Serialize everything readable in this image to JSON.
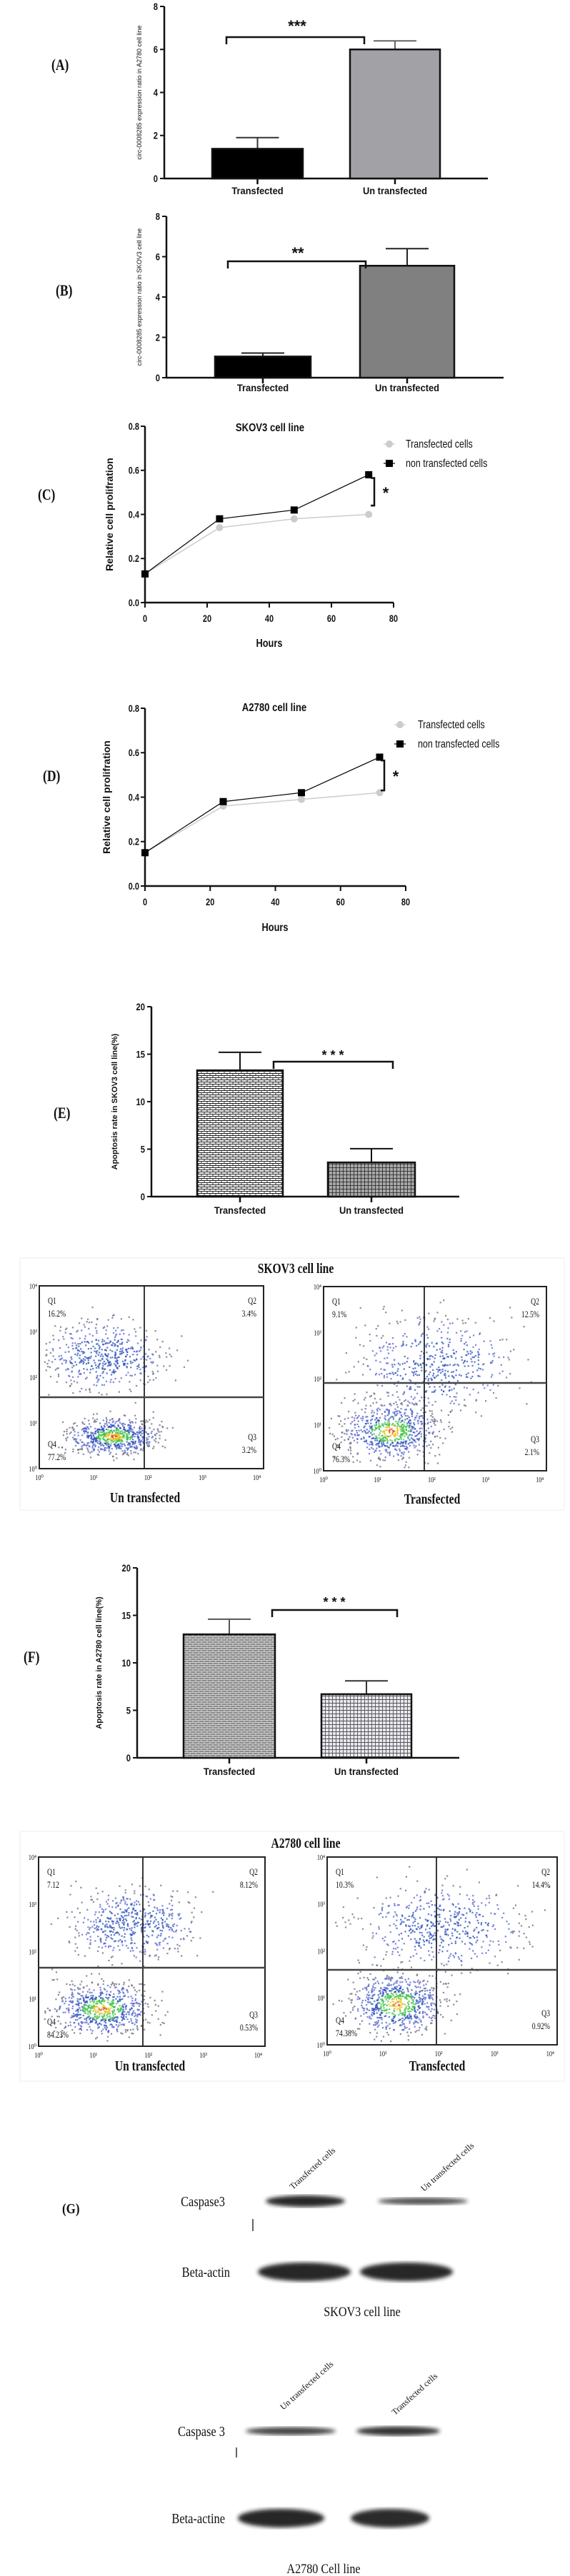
{
  "chart_data": [
    {
      "id": "A",
      "type": "bar",
      "panel_label": "(A)",
      "title": "",
      "ylabel": "circ-0008285 expression ratio in A2780 cell line",
      "xlabel": "",
      "categories": [
        "Transfected",
        "Un transfected"
      ],
      "values": [
        1.38,
        6.0
      ],
      "error_upper": [
        1.9,
        6.4
      ],
      "ylim": [
        0,
        8
      ],
      "yticks": [
        "0",
        "2",
        "4",
        "6",
        "8"
      ],
      "significance": "***",
      "colors": [
        "#000000",
        "#a2a2a6"
      ]
    },
    {
      "id": "B",
      "type": "bar",
      "panel_label": "(B)",
      "title": "",
      "ylabel": "circ-0008285 expression ratio in SKOV3 cell line",
      "xlabel": "",
      "categories": [
        "Transfected",
        "Un transfected"
      ],
      "values": [
        1.05,
        5.55
      ],
      "error_upper": [
        1.22,
        6.4
      ],
      "ylim": [
        0,
        8
      ],
      "yticks": [
        "0",
        "2",
        "4",
        "6",
        "8"
      ],
      "significance": "**",
      "colors": [
        "#000000",
        "#808080"
      ]
    },
    {
      "id": "C",
      "type": "line",
      "panel_label": "(C)",
      "title": "SKOV3 cell line",
      "xlabel": "Hours",
      "ylabel": "Relative cell prolifration",
      "x": [
        0,
        24,
        48,
        72
      ],
      "xlim": [
        0,
        80
      ],
      "xticks": [
        "0",
        "20",
        "40",
        "60",
        "80"
      ],
      "ylim": [
        0,
        0.8
      ],
      "yticks": [
        "0.0",
        "0.2",
        "0.4",
        "0.6",
        "0.8"
      ],
      "series": [
        {
          "name": "Transfected cells",
          "values": [
            0.13,
            0.34,
            0.38,
            0.4
          ],
          "color": "#cccccc",
          "marker": "circle"
        },
        {
          "name": "non transfected cells",
          "values": [
            0.13,
            0.38,
            0.42,
            0.58
          ],
          "color": "#000000",
          "marker": "square"
        }
      ],
      "legend": "top-right",
      "significance": "*"
    },
    {
      "id": "D",
      "type": "line",
      "panel_label": "(D)",
      "title": "A2780  cell line",
      "xlabel": "Hours",
      "ylabel": "Relative cell prolifration",
      "x": [
        0,
        24,
        48,
        72
      ],
      "xlim": [
        0,
        80
      ],
      "xticks": [
        "0",
        "20",
        "40",
        "60",
        "80"
      ],
      "ylim": [
        0,
        0.8
      ],
      "yticks": [
        "0.0",
        "0.2",
        "0.4",
        "0.6",
        "0.8"
      ],
      "series": [
        {
          "name": "Transfected cells",
          "values": [
            0.15,
            0.36,
            0.39,
            0.42
          ],
          "color": "#cccccc",
          "marker": "circle"
        },
        {
          "name": "non transfected cells",
          "values": [
            0.15,
            0.38,
            0.42,
            0.58
          ],
          "color": "#000000",
          "marker": "square"
        }
      ],
      "legend": "top-right",
      "significance": "*"
    },
    {
      "id": "E",
      "type": "bar",
      "panel_label": "(E)",
      "title": "",
      "ylabel": "Apoptosis rate in SKOV3 cell line(%)",
      "xlabel": "",
      "categories": [
        "Transfected",
        "Un transfected"
      ],
      "values": [
        13.3,
        3.6
      ],
      "error_upper": [
        15.2,
        5.05
      ],
      "ylim": [
        0,
        20
      ],
      "yticks": [
        "0",
        "5",
        "10",
        "15",
        "20"
      ],
      "significance": "* * *",
      "colors": [
        "#ffffff",
        "#a8a8a8"
      ]
    },
    {
      "id": "F",
      "type": "bar",
      "panel_label": "(F)",
      "title": "",
      "ylabel": "Apoptosis rate in A2780 cell line(%)",
      "xlabel": "",
      "categories": [
        "Transfected",
        "Un transfected"
      ],
      "values": [
        13.0,
        6.7
      ],
      "error_upper": [
        14.6,
        8.1
      ],
      "ylim": [
        0,
        20
      ],
      "yticks": [
        "0",
        "5",
        "10",
        "15",
        "20"
      ],
      "significance": "* * *",
      "colors": [
        "#8a8a8a",
        "#9c9caa"
      ]
    }
  ],
  "flow_cytometry": [
    {
      "title": "SKOV3 cell line",
      "axis_ticks": [
        "10⁰",
        "10¹",
        "10²",
        "10³",
        "10⁴"
      ],
      "plots": [
        {
          "label": "Un transfected",
          "q1": [
            "Q1",
            "16.2%"
          ],
          "q2": [
            "Q2",
            "3.4%"
          ],
          "q3": [
            "Q3",
            "3.2%"
          ],
          "q4": [
            "Q4",
            "77.2%"
          ]
        },
        {
          "label": "Transfected",
          "q1": [
            "Q1",
            "9.1%"
          ],
          "q2": [
            "Q2",
            "12.5%"
          ],
          "q3": [
            "Q3",
            "2.1%"
          ],
          "q4": [
            "Q4",
            "76.3%"
          ]
        }
      ]
    },
    {
      "title": "A2780 cell line",
      "axis_ticks": [
        "10⁰",
        "10¹",
        "10²",
        "10³",
        "10⁴"
      ],
      "plots": [
        {
          "label": "Un transfected",
          "q1": [
            "Q1",
            "7.12"
          ],
          "q2": [
            "Q2",
            "8.12%"
          ],
          "q3": [
            "Q3",
            "0.53%"
          ],
          "q4": [
            "Q4",
            "84.23%"
          ]
        },
        {
          "label": "Transfected",
          "q1": [
            "Q1",
            "10.3%"
          ],
          "q2": [
            "Q2",
            "14.4%"
          ],
          "q3": [
            "Q3",
            "0.92%"
          ],
          "q4": [
            "Q4",
            "74.38%"
          ]
        }
      ]
    }
  ],
  "western_blot": {
    "panel_label": "(G)",
    "blots": [
      {
        "caption": "SKOV3 cell line",
        "lanes": [
          "Transfected cells",
          "Un transfected cells"
        ],
        "rows": [
          {
            "label": "Caspase3",
            "band_intensity": [
              1.0,
              0.55
            ]
          },
          {
            "label": "Beta-actin",
            "band_intensity": [
              1.0,
              1.0
            ]
          }
        ]
      },
      {
        "caption": "A2780 Cell line",
        "lanes": [
          "Un transfected cells",
          "Transfected  cells"
        ],
        "rows": [
          {
            "label": "Caspase 3",
            "band_intensity": [
              0.7,
              0.85
            ]
          },
          {
            "label": "Beta-actine",
            "band_intensity": [
              1.0,
              0.95
            ]
          }
        ]
      }
    ]
  }
}
